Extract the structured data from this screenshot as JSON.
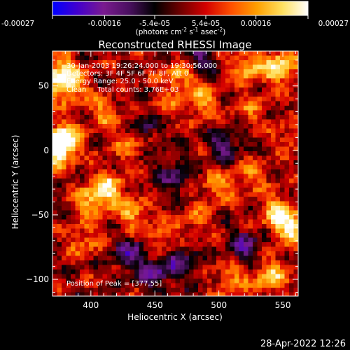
{
  "colorbar": {
    "tick_labels": [
      "-0.00027",
      "-0.00016",
      "-5.4e-05",
      "5.4e-05",
      "0.00016",
      "0.00027"
    ],
    "tick_values": [
      -0.00027,
      -0.00016,
      -5.4e-05,
      5.4e-05,
      0.00016,
      0.00027
    ],
    "range": [
      -0.00027,
      0.00027
    ],
    "units_prefix": "(photons cm",
    "units_exp1": "-2",
    "units_mid": " s",
    "units_exp2": "-1",
    "units_mid2": " asec",
    "units_exp3": "-2",
    "units_suffix": ")",
    "colormap": [
      "#0000ff",
      "#4400cc",
      "#7a1a8f",
      "#4a1060",
      "#000000",
      "#6e0000",
      "#d40000",
      "#ff5000",
      "#ffa000",
      "#ffe060",
      "#ffffff"
    ]
  },
  "chart_data": {
    "type": "heatmap",
    "title": "Reconstructed RHESSI Image",
    "xlabel": "Heliocentric X (arcsec)",
    "ylabel": "Heliocentric Y (arcsec)",
    "xlim": [
      370,
      562
    ],
    "ylim": [
      -113,
      77
    ],
    "x_ticks": [
      400,
      450,
      500,
      550
    ],
    "y_ticks": [
      50,
      0,
      -50,
      -100
    ],
    "x_tick_labels": [
      "400",
      "450",
      "500",
      "550"
    ],
    "y_tick_labels": [
      "50",
      "0",
      "−50",
      "−100"
    ],
    "annotations": [
      "30-Jan-2003 19:26:24.000 to 19:30:56.000",
      "Detectors: 3F 4F 5F 6F 7F 8F, Att 0",
      "Energy Range: 25.0 - 50.0 keV",
      "Clean     Total counts: 3.76E+03"
    ],
    "peak_label": "Position of Peak = [377,55]",
    "peak_position": [
      377,
      55
    ],
    "background_level": 2e-05,
    "hotspots": [
      {
        "x": 378,
        "y": 8,
        "value": 0.00027
      },
      {
        "x": 372,
        "y": 0,
        "value": 0.00024
      },
      {
        "x": 382,
        "y": 50,
        "value": 0.00022
      },
      {
        "x": 375,
        "y": 62,
        "value": 0.0002
      },
      {
        "x": 413,
        "y": -30,
        "value": 0.00022
      },
      {
        "x": 400,
        "y": -40,
        "value": 0.00016
      },
      {
        "x": 470,
        "y": 57,
        "value": 0.00018
      },
      {
        "x": 548,
        "y": 65,
        "value": 0.00025
      },
      {
        "x": 522,
        "y": 64,
        "value": 0.00018
      },
      {
        "x": 434,
        "y": -50,
        "value": 0.00016
      },
      {
        "x": 456,
        "y": -70,
        "value": 0.00013
      },
      {
        "x": 545,
        "y": -47,
        "value": 0.0002
      },
      {
        "x": 556,
        "y": -60,
        "value": 0.00023
      },
      {
        "x": 540,
        "y": -98,
        "value": 0.0002
      },
      {
        "x": 510,
        "y": -100,
        "value": 0.00014
      },
      {
        "x": 500,
        "y": -28,
        "value": 0.00015
      },
      {
        "x": 487,
        "y": 38,
        "value": 0.00016
      },
      {
        "x": 410,
        "y": 30,
        "value": 0.00014
      },
      {
        "x": 430,
        "y": 5,
        "value": 0.00013
      },
      {
        "x": 455,
        "y": 30,
        "value": 0.00012
      },
      {
        "x": 525,
        "y": 30,
        "value": 0.00011
      },
      {
        "x": 525,
        "y": -20,
        "value": 0.00012
      },
      {
        "x": 395,
        "y": -70,
        "value": 0.00013
      },
      {
        "x": 480,
        "y": -55,
        "value": 0.00011
      },
      {
        "x": 555,
        "y": 10,
        "value": 0.0001
      },
      {
        "x": 465,
        "y": -20,
        "value": -0.0001
      },
      {
        "x": 445,
        "y": 20,
        "value": -0.00011
      },
      {
        "x": 430,
        "y": -80,
        "value": -0.00013
      },
      {
        "x": 450,
        "y": -95,
        "value": -0.00014
      },
      {
        "x": 505,
        "y": 5,
        "value": -0.00012
      },
      {
        "x": 520,
        "y": -75,
        "value": -0.00013
      },
      {
        "x": 485,
        "y": 70,
        "value": -0.00011
      },
      {
        "x": 470,
        "y": -85,
        "value": -0.00012
      }
    ]
  },
  "footer": {
    "timestamp": "28-Apr-2022 12:26"
  }
}
